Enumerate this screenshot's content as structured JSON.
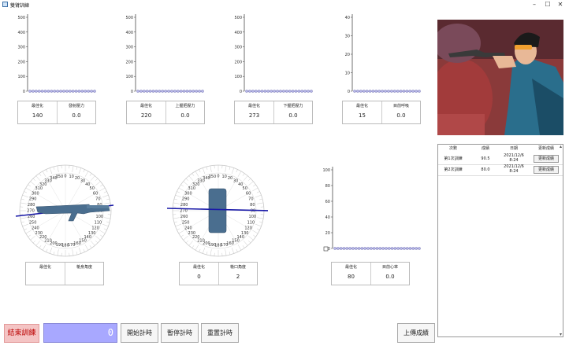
{
  "window": {
    "title": "雙臂訓練",
    "minimize": "–",
    "maximize": "☐",
    "close": "✕"
  },
  "chart_data": [
    {
      "type": "line",
      "y_ticks": [
        "500",
        "400",
        "300",
        "200",
        "100",
        "0"
      ],
      "ylim": [
        0,
        500
      ],
      "num_points": 22,
      "values": [
        0
      ]
    },
    {
      "type": "line",
      "y_ticks": [
        "500",
        "400",
        "300",
        "200",
        "100",
        "0"
      ],
      "ylim": [
        0,
        500
      ],
      "num_points": 22,
      "values": [
        0
      ]
    },
    {
      "type": "line",
      "y_ticks": [
        "500",
        "400",
        "300",
        "200",
        "100",
        "0"
      ],
      "ylim": [
        0,
        500
      ],
      "num_points": 22,
      "values": [
        0
      ]
    },
    {
      "type": "line",
      "y_ticks": [
        "40",
        "30",
        "20",
        "10",
        "0"
      ],
      "ylim": [
        0,
        40
      ],
      "num_points": 22,
      "values": [
        0
      ]
    },
    {
      "type": "line",
      "y_ticks": [
        "100",
        "80",
        "60",
        "40",
        "20",
        "0"
      ],
      "ylim": [
        0,
        100
      ],
      "num_points": 29,
      "values": [
        0
      ]
    }
  ],
  "stats": {
    "s1": {
      "best_label": "最佳化",
      "best_value": "140",
      "cur_label": "發射壓力",
      "cur_value": "0.0"
    },
    "s2": {
      "best_label": "最佳化",
      "best_value": "220",
      "cur_label": "上握把壓力",
      "cur_value": "0.0"
    },
    "s3": {
      "best_label": "最佳化",
      "best_value": "273",
      "cur_label": "下握把壓力",
      "cur_value": "0.0"
    },
    "s4": {
      "best_label": "最佳化",
      "best_value": "15",
      "cur_label": "目前呼吸",
      "cur_value": "0.0"
    },
    "s5": {
      "best_label": "最佳化",
      "best_value": "",
      "cur_label": "槍身角度",
      "cur_value": ""
    },
    "s6": {
      "best_label": "最佳化",
      "best_value": "0",
      "cur_label": "槍口角度",
      "cur_value": "2"
    },
    "s7": {
      "best_label": "最佳化",
      "best_value": "80",
      "cur_label": "目前心率",
      "cur_value": "0.0"
    }
  },
  "dial_labels": [
    "0",
    "10",
    "20",
    "30",
    "40",
    "50",
    "60",
    "70",
    "80",
    "90",
    "100",
    "110",
    "120",
    "130",
    "140",
    "150",
    "160",
    "170",
    "180",
    "190",
    "200",
    "210",
    "220",
    "230",
    "240",
    "250",
    "260",
    "270",
    "280",
    "290",
    "300",
    "310",
    "320",
    "330",
    "340",
    "350"
  ],
  "table": {
    "headers": [
      "次數",
      "成績",
      "日期",
      "更新成績"
    ],
    "rows": [
      {
        "attempt": "第1次訓練",
        "score": "90.5",
        "date1": "2021/12/6",
        "date2": "8:24",
        "action": "更新成績"
      },
      {
        "attempt": "第2次訓練",
        "score": "80.0",
        "date1": "2021/12/6",
        "date2": "8:24",
        "action": "更新成績"
      }
    ]
  },
  "controls": {
    "end_training": "結束訓練",
    "timer_value": "0",
    "start_timer": "開始計時",
    "pause_timer": "暫停計時",
    "reset_timer": "重置計時",
    "upload_score": "上傳成績"
  },
  "colors": {
    "accent": "#1a1aa8",
    "gun": "#4a6e8f",
    "timer": "#a8a8ff",
    "end_button": "#f4c4c4"
  }
}
